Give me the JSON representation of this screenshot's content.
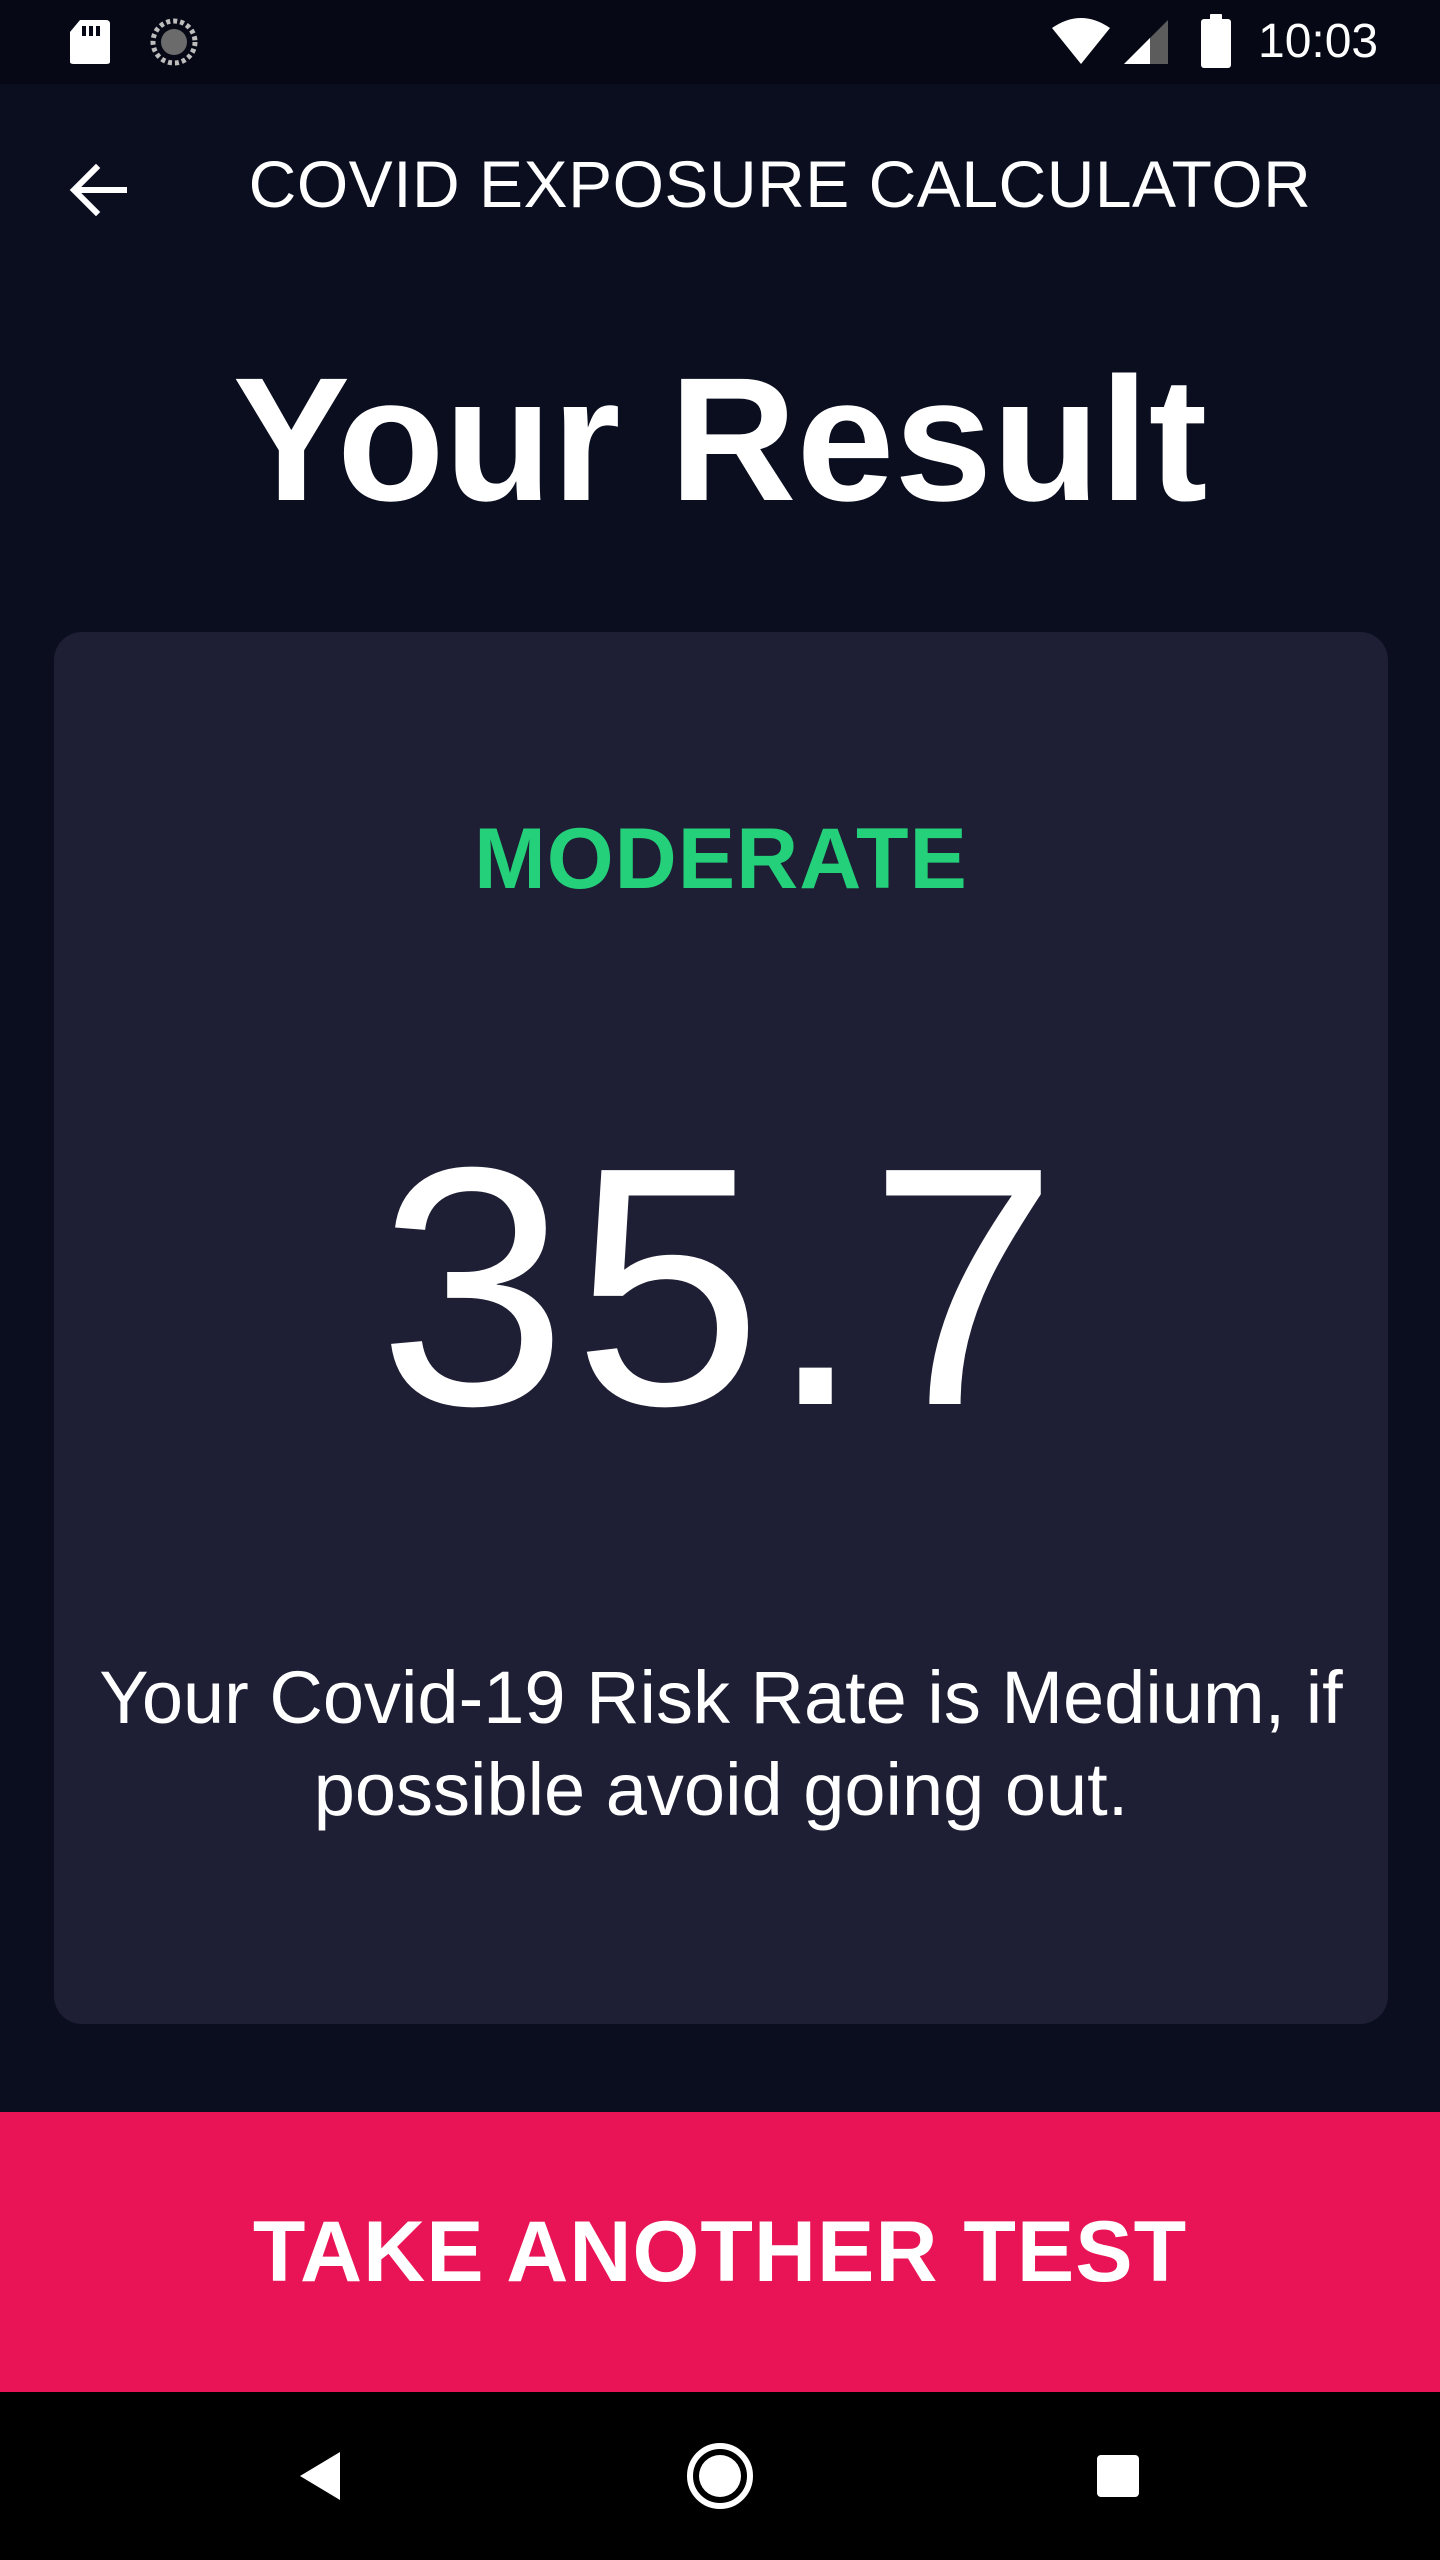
{
  "status_bar": {
    "time": "10:03",
    "icons": [
      "sd-card-icon",
      "sync-icon",
      "wifi-icon",
      "cell-signal-icon",
      "battery-icon"
    ]
  },
  "app_bar": {
    "title": "COVID EXPOSURE CALCULATOR",
    "back_icon": "arrow-left-icon"
  },
  "page": {
    "heading": "Your Result"
  },
  "result": {
    "level": "MODERATE",
    "score": "35.7",
    "message": "Your Covid-19 Risk Rate is Medium, if possible avoid going out.",
    "level_color": "#24d17a"
  },
  "cta": {
    "label": "TAKE ANOTHER TEST",
    "color": "#e91455"
  },
  "nav_bar": {
    "icons": [
      "nav-back-icon",
      "nav-home-icon",
      "nav-recents-icon"
    ]
  },
  "colors": {
    "background": "#0a0e1f",
    "card": "#1e1f35",
    "text": "#ffffff"
  }
}
